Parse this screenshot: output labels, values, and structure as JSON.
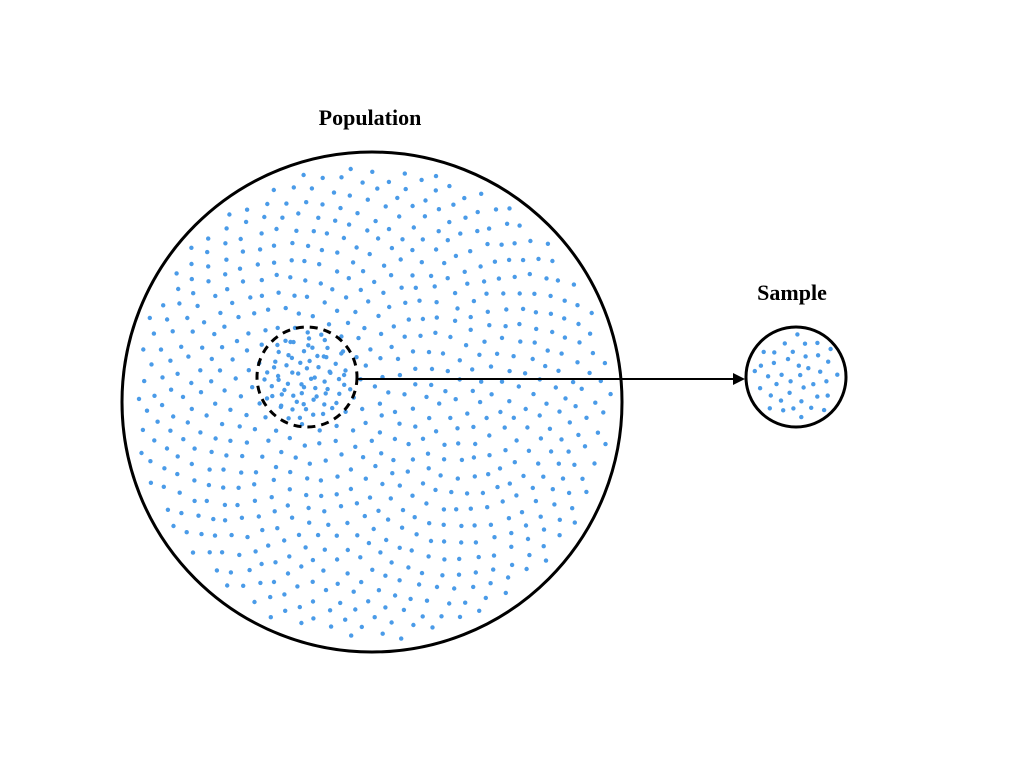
{
  "population": {
    "label": "Population",
    "dot_count": 700,
    "dot_color": "#4a9be8",
    "outline_color": "#000000"
  },
  "sample": {
    "label": "Sample",
    "dot_count": 40,
    "dot_color": "#4a9be8",
    "outline_color": "#000000"
  },
  "selection_region": {
    "style": "dashed",
    "dot_count": 45
  },
  "arrow": {
    "color": "#000000"
  }
}
